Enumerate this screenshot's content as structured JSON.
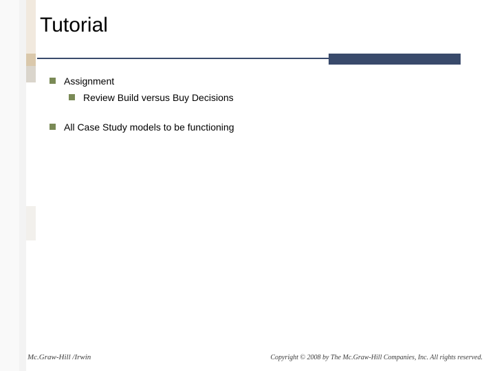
{
  "title": "Tutorial",
  "colors": {
    "accent_bar": "#394a6b",
    "bullet": "#7a8a56",
    "background": "#ffffff",
    "left_stripe_light": "#f9f9f9",
    "left_stripe_med": "#f3f3f3",
    "tan_top": "#f1e9de",
    "tan_mid": "#dac8ab",
    "tan_gap": "#dad5cc"
  },
  "fonts": {
    "title_size_pt": 22,
    "body_size_pt": 11,
    "footer_size_pt": 8
  },
  "bullets": {
    "level1_a": "Assignment",
    "level2_a": "Review Build versus Buy Decisions",
    "level1_b": "All Case Study models to be functioning"
  },
  "footer": {
    "left": "Mc.Graw-Hill /Irwin",
    "right": "Copyright © 2008 by The Mc.Graw-Hill Companies, Inc. All rights reserved."
  }
}
